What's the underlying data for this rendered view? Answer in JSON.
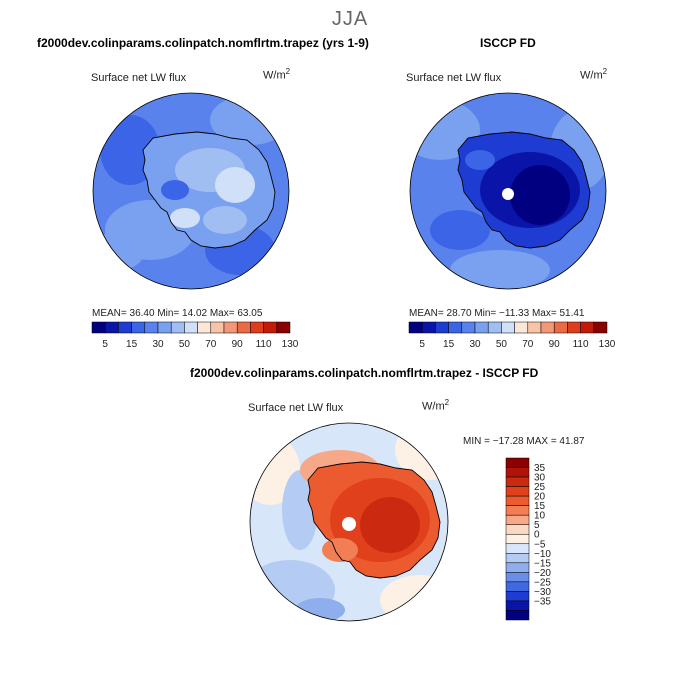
{
  "title": "JJA",
  "panels": [
    {
      "id": "model",
      "title": "f2000dev.colinparams.colinpatch.nomflrtm.trapez (yrs 1-9)",
      "variable": "Surface net LW flux",
      "units": "W/m",
      "units_exp": "2",
      "stats": "MEAN=   36.40   Min=   14.02   Max=   63.05"
    },
    {
      "id": "obs",
      "title": "ISCCP FD",
      "variable": "Surface net LW flux",
      "units": "W/m",
      "units_exp": "2",
      "stats": "MEAN=   28.70   Min= −11.33   Max=   51.41"
    },
    {
      "id": "diff",
      "title": "f2000dev.colinparams.colinpatch.nomflrtm.trapez - ISCCP FD",
      "variable": "Surface net LW flux",
      "units": "W/m",
      "units_exp": "2",
      "stats": "MIN = −17.28  MAX =   41.87"
    }
  ],
  "chart_data": [
    {
      "type": "heatmap",
      "projection": "south-polar-stereographic",
      "title": "f2000dev.colinparams.colinpatch.nomflrtm.trapez (yrs 1-9)",
      "variable": "Surface net LW flux",
      "units": "W/m^2",
      "mean": 36.4,
      "min": 14.02,
      "max": 63.05,
      "colorbar": {
        "orientation": "horizontal",
        "tick_labels": [
          "5",
          "15",
          "30",
          "50",
          "70",
          "90",
          "110",
          "130"
        ],
        "levels": [
          5,
          10,
          15,
          20,
          30,
          40,
          50,
          60,
          70,
          80,
          90,
          100,
          110,
          120,
          130
        ],
        "colors": [
          "#000080",
          "#0a14a8",
          "#1e3cd2",
          "#3c64e6",
          "#5a82ec",
          "#7aa0f0",
          "#a0bef2",
          "#cfe0f8",
          "#fbe6d8",
          "#f8c4a8",
          "#f29878",
          "#e96a44",
          "#de3e1c",
          "#c21c08",
          "#8b0000"
        ]
      }
    },
    {
      "type": "heatmap",
      "projection": "south-polar-stereographic",
      "title": "ISCCP FD",
      "variable": "Surface net LW flux",
      "units": "W/m^2",
      "mean": 28.7,
      "min": -11.33,
      "max": 51.41,
      "colorbar": {
        "orientation": "horizontal",
        "tick_labels": [
          "5",
          "15",
          "30",
          "50",
          "70",
          "90",
          "110",
          "130"
        ],
        "levels": [
          5,
          10,
          15,
          20,
          30,
          40,
          50,
          60,
          70,
          80,
          90,
          100,
          110,
          120,
          130
        ],
        "colors": [
          "#000080",
          "#0a14a8",
          "#1e3cd2",
          "#3c64e6",
          "#5a82ec",
          "#7aa0f0",
          "#a0bef2",
          "#cfe0f8",
          "#fbe6d8",
          "#f8c4a8",
          "#f29878",
          "#e96a44",
          "#de3e1c",
          "#c21c08",
          "#8b0000"
        ]
      }
    },
    {
      "type": "heatmap",
      "projection": "south-polar-stereographic",
      "title": "f2000dev.colinparams.colinpatch.nomflrtm.trapez - ISCCP FD",
      "variable": "Surface net LW flux",
      "units": "W/m^2",
      "min": -17.28,
      "max": 41.87,
      "colorbar": {
        "orientation": "vertical",
        "tick_labels": [
          "35",
          "30",
          "25",
          "20",
          "15",
          "10",
          "5",
          "0",
          "−5",
          "−10",
          "−15",
          "−20",
          "−25",
          "−30",
          "−35"
        ],
        "colors": [
          "#8b0000",
          "#b01408",
          "#cc2a10",
          "#e0401c",
          "#ec5a30",
          "#f27e56",
          "#f6a888",
          "#fbd8c4",
          "#fdf0e4",
          "#d8e6fa",
          "#b4ccf4",
          "#8eaeee",
          "#6a8ee8",
          "#4068e0",
          "#1e3cd2",
          "#0a14a8",
          "#000080"
        ]
      }
    }
  ]
}
